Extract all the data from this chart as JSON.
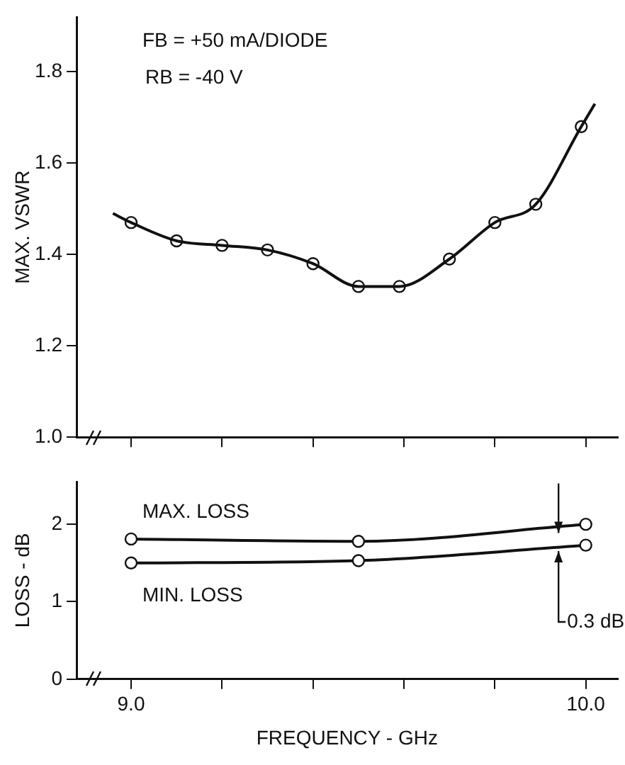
{
  "chart_data": [
    {
      "type": "line",
      "annotations": [
        "FB = +50 mA/DIODE",
        "RB = -40 V"
      ],
      "ylabel": "MAX. VSWR",
      "xlim": [
        8.88,
        10.07
      ],
      "ylim": [
        1.0,
        1.92
      ],
      "xticks": [
        9,
        9.2,
        9.4,
        9.6,
        9.8,
        10
      ],
      "yticks": [
        {
          "value": 1,
          "label": "1.0"
        },
        1.2,
        1.4,
        1.6,
        1.8
      ],
      "tick_labels": "y",
      "grid": false,
      "legend": false,
      "series": [
        {
          "type": "line",
          "marker": "none",
          "color": "#111111",
          "x": [
            8.96,
            9.0,
            9.1,
            9.2,
            9.3,
            9.4,
            9.5,
            9.59,
            9.7,
            9.8,
            9.89,
            9.99,
            10.02
          ],
          "values": [
            1.49,
            1.47,
            1.43,
            1.42,
            1.41,
            1.38,
            1.33,
            1.33,
            1.39,
            1.47,
            1.51,
            1.68,
            1.73
          ]
        },
        {
          "type": "scatter",
          "marker": "circle",
          "color": "#111111",
          "x": [
            9.0,
            9.1,
            9.2,
            9.3,
            9.4,
            9.5,
            9.59,
            9.7,
            9.8,
            9.89,
            9.99
          ],
          "values": [
            1.47,
            1.43,
            1.42,
            1.41,
            1.38,
            1.33,
            1.33,
            1.39,
            1.47,
            1.51,
            1.68
          ]
        }
      ]
    },
    {
      "type": "line",
      "xlabel": "FREQUENCY - GHz",
      "ylabel": "LOSS - dB",
      "xlim": [
        8.88,
        10.07
      ],
      "ylim": [
        0,
        2.55
      ],
      "xticks": [
        {
          "value": 9,
          "label": "9.0"
        },
        {
          "value": 9.2,
          "label": null
        },
        {
          "value": 9.4,
          "label": null
        },
        {
          "value": 9.6,
          "label": null
        },
        {
          "value": 9.8,
          "label": null
        },
        {
          "value": 10,
          "label": "10.0"
        }
      ],
      "yticks": [
        0,
        1,
        2
      ],
      "grid": false,
      "legend": false,
      "marker": "circle",
      "annotations": [
        {
          "text": "0.3 dB",
          "x": 9.94,
          "y": 1.69
        }
      ],
      "series": [
        {
          "name": "MAX. LOSS",
          "color": "#111111",
          "x": [
            9.0,
            9.5,
            10.0
          ],
          "values": [
            1.81,
            1.78,
            2.0
          ]
        },
        {
          "name": "MIN. LOSS",
          "color": "#111111",
          "x": [
            9.0,
            9.5,
            10.0
          ],
          "values": [
            1.5,
            1.53,
            1.73
          ]
        }
      ]
    }
  ]
}
